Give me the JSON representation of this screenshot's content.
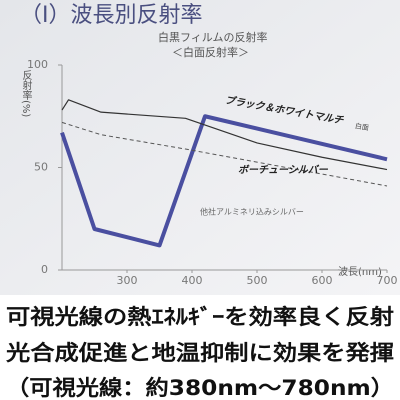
{
  "chart_data": {
    "type": "line",
    "title": "（Ⅰ）波長別反射率",
    "subtitle": "白黒フィルムの反射率",
    "subtitle2": "＜白面反射率＞",
    "y_label": "反射率(%)",
    "x_label": "波長(nm)",
    "xlim": [
      200,
      700
    ],
    "xticks": [
      300,
      400,
      500,
      600,
      700
    ],
    "ylim": [
      0,
      100
    ],
    "yticks": [
      0,
      50,
      100
    ],
    "series": [
      {
        "name": "ブラック＆ホワイトマルチ",
        "note": "白面",
        "color": "#4a4fa0",
        "style": "solid",
        "x": [
          200,
          250,
          350,
          420,
          700
        ],
        "values": [
          67,
          20,
          12,
          75,
          54
        ]
      },
      {
        "name": "ボーチューシルバー",
        "color": "#333333",
        "style": "solid",
        "x": [
          200,
          210,
          260,
          390,
          500,
          600,
          700
        ],
        "values": [
          78,
          83,
          77,
          74,
          62,
          55,
          49
        ]
      },
      {
        "name": "他社アルミネリ込みシルバー",
        "color": "#555555",
        "style": "dashed",
        "x": [
          200,
          260,
          390,
          700
        ],
        "values": [
          72,
          66,
          59,
          41
        ]
      }
    ],
    "caption": [
      "可視光線の熱ｴﾈﾙｷﾞｰを効率良く反射",
      "光合成促進と地温抑制に効果を発揮",
      "（可視光線：約380nm〜780nm）"
    ]
  }
}
